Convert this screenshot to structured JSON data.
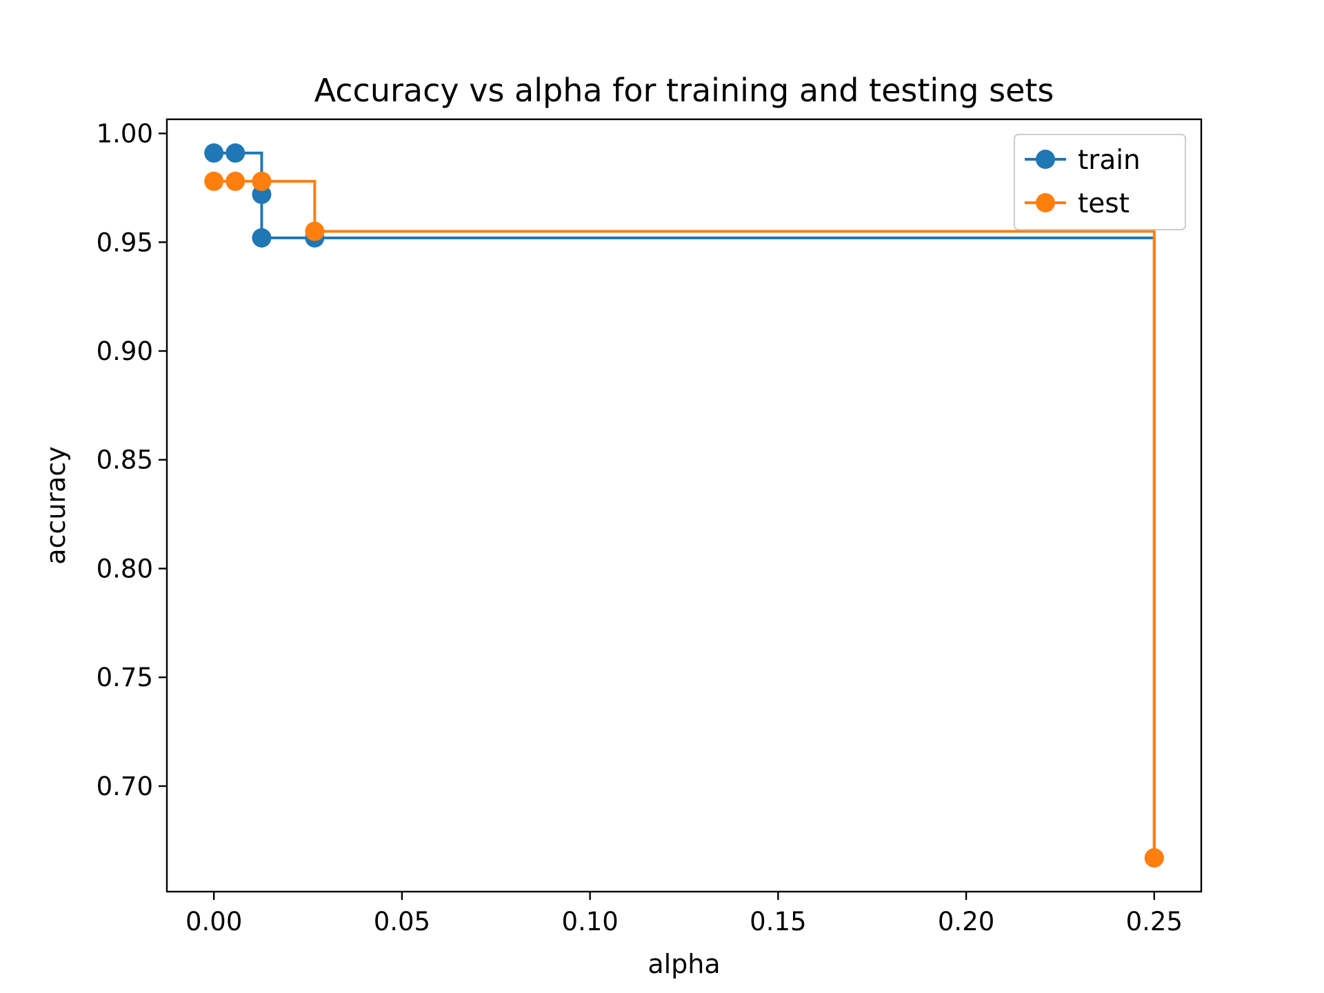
{
  "chart_data": {
    "type": "line",
    "title": "Accuracy vs alpha for training and testing sets",
    "xlabel": "alpha",
    "ylabel": "accuracy",
    "xlim": [
      -0.0125,
      0.2625
    ],
    "ylim": [
      0.6515,
      1.0065
    ],
    "xticks": [
      0.0,
      0.05,
      0.1,
      0.15,
      0.2,
      0.25
    ],
    "xtick_labels": [
      "0.00",
      "0.05",
      "0.10",
      "0.15",
      "0.20",
      "0.25"
    ],
    "yticks": [
      0.7,
      0.75,
      0.8,
      0.85,
      0.9,
      0.95,
      1.0
    ],
    "ytick_labels": [
      "0.70",
      "0.75",
      "0.80",
      "0.85",
      "0.90",
      "0.95",
      "1.00"
    ],
    "drawstyle": "steps-post",
    "grid": false,
    "legend_position": "top-right",
    "x": [
      0.0,
      0.0057,
      0.0127,
      0.0127,
      0.0268,
      0.25
    ],
    "series": [
      {
        "name": "train",
        "color": "#1f77b4",
        "values": [
          0.991,
          0.991,
          0.972,
          0.952,
          0.952,
          0.667
        ]
      },
      {
        "name": "test",
        "color": "#ff7f0e",
        "values": [
          0.978,
          0.978,
          0.978,
          0.978,
          0.955,
          0.667
        ]
      }
    ]
  }
}
